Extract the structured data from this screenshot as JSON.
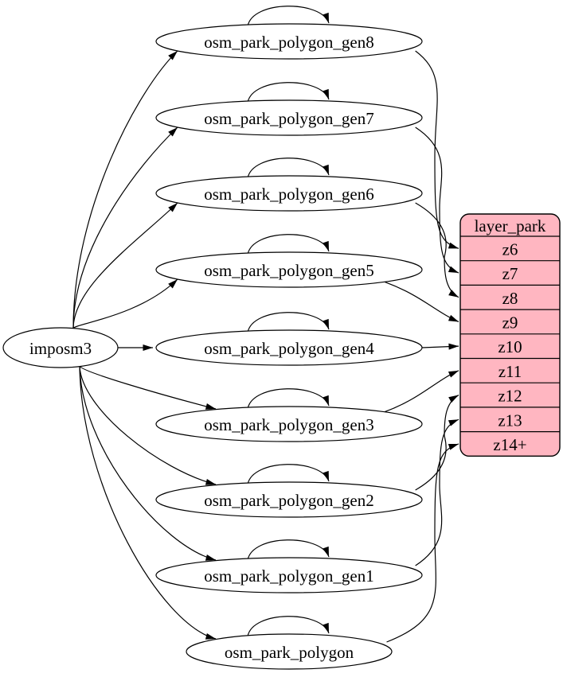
{
  "diagram": {
    "source": {
      "id": "imposm3",
      "label": "imposm3"
    },
    "generators": [
      {
        "id": "osm_park_polygon_gen8",
        "label": "osm_park_polygon_gen8"
      },
      {
        "id": "osm_park_polygon_gen7",
        "label": "osm_park_polygon_gen7"
      },
      {
        "id": "osm_park_polygon_gen6",
        "label": "osm_park_polygon_gen6"
      },
      {
        "id": "osm_park_polygon_gen5",
        "label": "osm_park_polygon_gen5"
      },
      {
        "id": "osm_park_polygon_gen4",
        "label": "osm_park_polygon_gen4"
      },
      {
        "id": "osm_park_polygon_gen3",
        "label": "osm_park_polygon_gen3"
      },
      {
        "id": "osm_park_polygon_gen2",
        "label": "osm_park_polygon_gen2"
      },
      {
        "id": "osm_park_polygon_gen1",
        "label": "osm_park_polygon_gen1"
      },
      {
        "id": "osm_park_polygon",
        "label": "osm_park_polygon"
      }
    ],
    "layer_table": {
      "id": "layer_park",
      "title": "layer_park",
      "rows": [
        "z6",
        "z7",
        "z8",
        "z9",
        "z10",
        "z11",
        "z12",
        "z13",
        "z14+"
      ]
    },
    "edges": {
      "from_source": [
        "osm_park_polygon_gen8",
        "osm_park_polygon_gen7",
        "osm_park_polygon_gen6",
        "osm_park_polygon_gen5",
        "osm_park_polygon_gen4",
        "osm_park_polygon_gen3",
        "osm_park_polygon_gen2",
        "osm_park_polygon_gen1",
        "osm_park_polygon"
      ],
      "self_loops": [
        "osm_park_polygon_gen8",
        "osm_park_polygon_gen7",
        "osm_park_polygon_gen6",
        "osm_park_polygon_gen5",
        "osm_park_polygon_gen4",
        "osm_park_polygon_gen3",
        "osm_park_polygon_gen2",
        "osm_park_polygon_gen1",
        "osm_park_polygon"
      ],
      "to_layer": [
        {
          "from": "osm_park_polygon_gen8",
          "row": "z6"
        },
        {
          "from": "osm_park_polygon_gen7",
          "row": "z7"
        },
        {
          "from": "osm_park_polygon_gen6",
          "row": "z8"
        },
        {
          "from": "osm_park_polygon_gen5",
          "row": "z9"
        },
        {
          "from": "osm_park_polygon_gen4",
          "row": "z10"
        },
        {
          "from": "osm_park_polygon_gen3",
          "row": "z11"
        },
        {
          "from": "osm_park_polygon_gen2",
          "row": "z12"
        },
        {
          "from": "osm_park_polygon_gen1",
          "row": "z13"
        },
        {
          "from": "osm_park_polygon",
          "row": "z14+"
        }
      ]
    },
    "colors": {
      "background": "#ffffff",
      "node_fill": "#ffffff",
      "edge_stroke": "#000000",
      "table_fill": "#ffb6c1",
      "text": "#000000"
    }
  }
}
